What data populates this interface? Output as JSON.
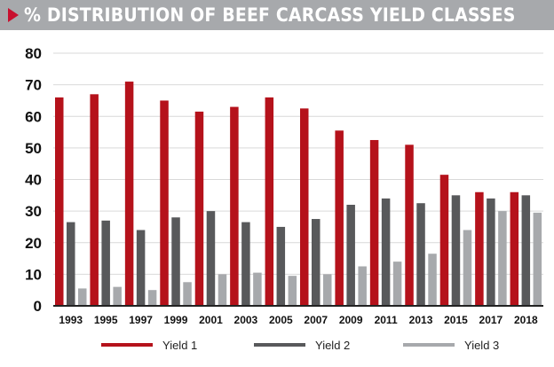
{
  "title": "% DISTRIBUTION OF BEEF CARCASS YIELD CLASSES",
  "colors": {
    "yield1": "#b5121b",
    "yield2": "#58595b",
    "yield3": "#a7a9ac",
    "accent": "#c8102e",
    "title_bg": "#a7a9ac",
    "grid": "#d9d9d9"
  },
  "chart_data": {
    "type": "bar",
    "categories": [
      "1993",
      "1995",
      "1997",
      "1999",
      "2001",
      "2003",
      "2005",
      "2007",
      "2009",
      "2011",
      "2013",
      "2015",
      "2017",
      "2018"
    ],
    "series": [
      {
        "name": "Yield 1",
        "values": [
          66,
          67,
          71,
          65,
          61.5,
          63,
          66,
          62.5,
          55.5,
          52.5,
          51,
          41.5,
          36,
          36
        ]
      },
      {
        "name": "Yield 2",
        "values": [
          26.5,
          27,
          24,
          28,
          30,
          26.5,
          25,
          27.5,
          32,
          34,
          32.5,
          35,
          34,
          35
        ]
      },
      {
        "name": "Yield 3",
        "values": [
          5.5,
          6,
          5,
          7.5,
          10,
          10.5,
          9.5,
          10,
          12.5,
          14,
          16.5,
          24,
          30,
          29.5
        ]
      }
    ],
    "yticks": [
      0,
      10,
      20,
      30,
      40,
      50,
      60,
      70,
      80
    ],
    "ylim": [
      0,
      80
    ],
    "grid": true,
    "legend_position": "bottom"
  }
}
